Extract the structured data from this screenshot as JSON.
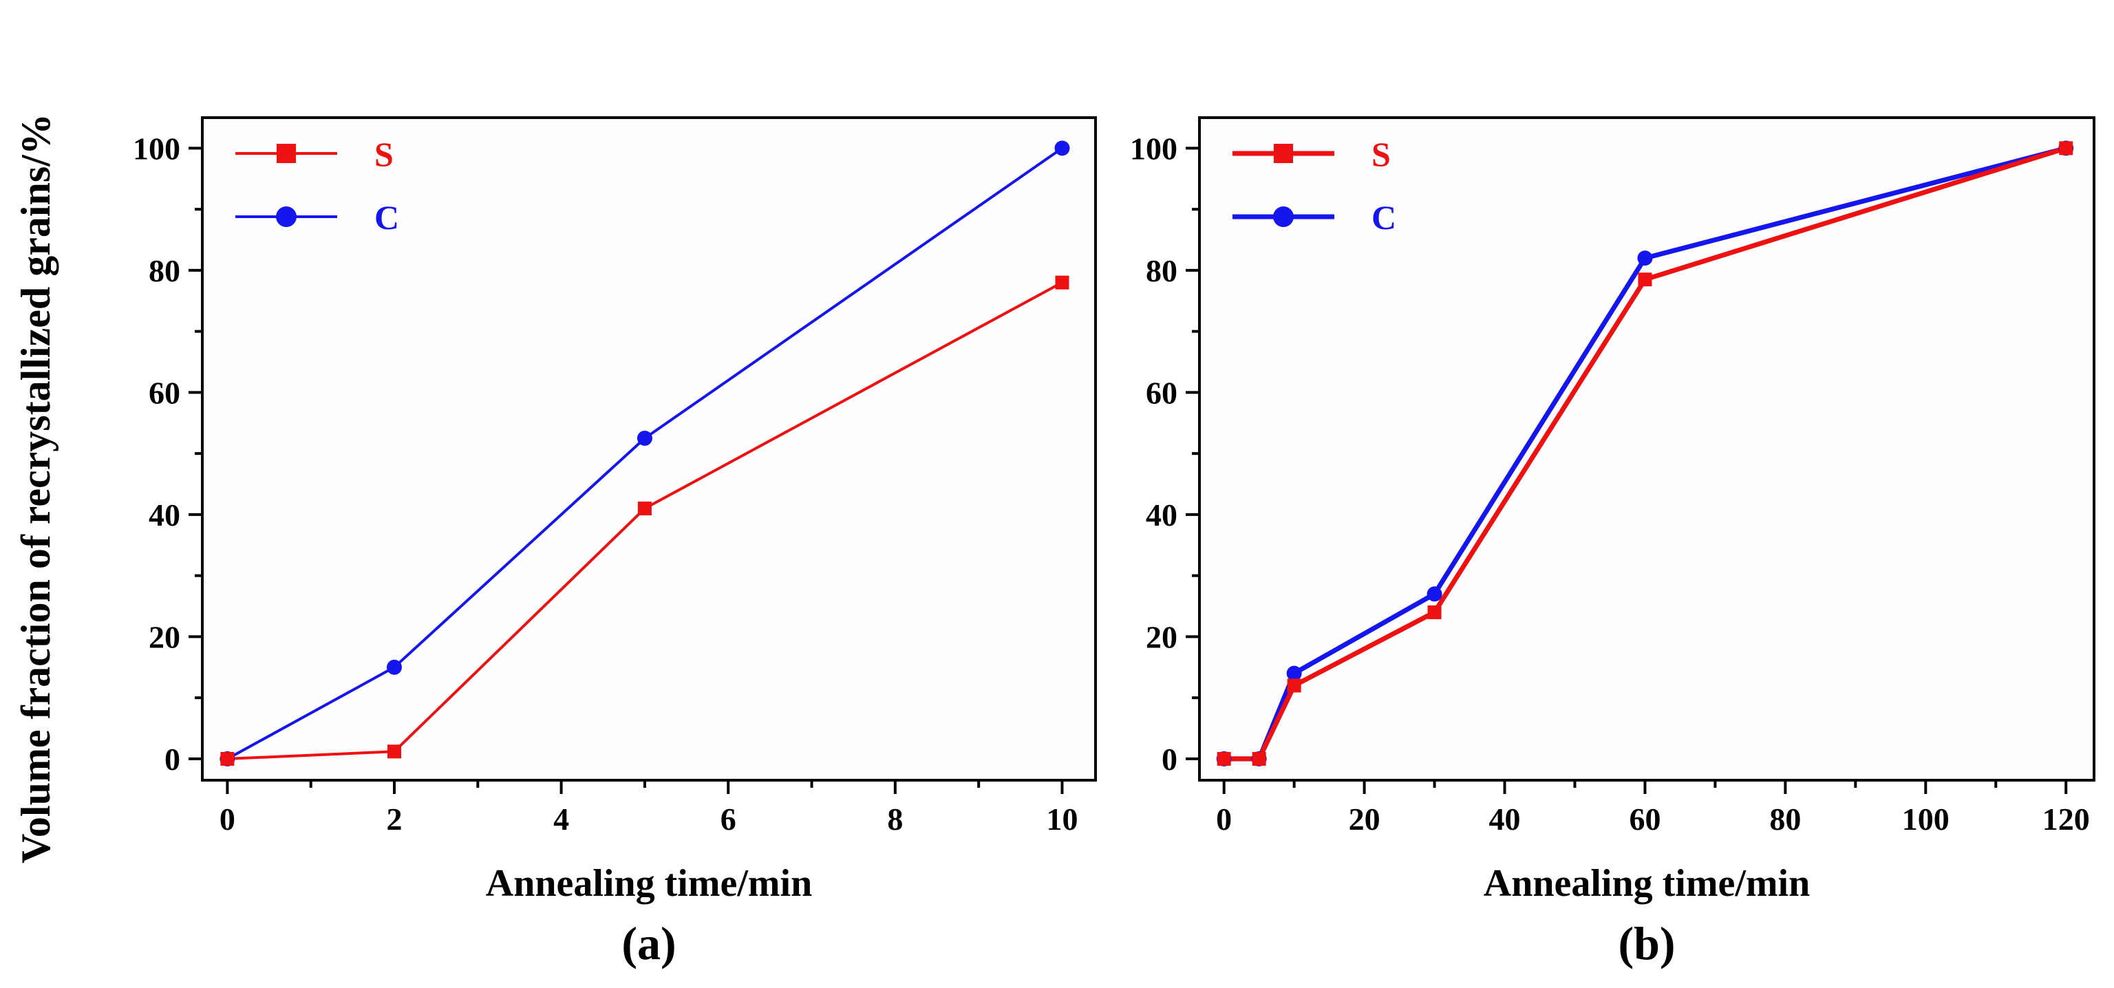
{
  "figure": {
    "ylabel": "Volume fraction of recrystallized grains/%",
    "colors": {
      "S": "#ee1111",
      "C": "#1515ee"
    }
  },
  "chart_data": [
    {
      "type": "line",
      "panel_label": "(a)",
      "xlabel": "Annealing time/min",
      "ylabel": "Volume fraction of recrystallized grains/%",
      "xlim": [
        -0.3,
        10.4
      ],
      "ylim": [
        -3.5,
        105
      ],
      "xticks": [
        0,
        2,
        4,
        6,
        8,
        10
      ],
      "yticks": [
        0,
        20,
        40,
        60,
        80,
        100
      ],
      "grid": false,
      "legend": "top-left",
      "series": [
        {
          "name": "S",
          "marker": "square",
          "color": "#ee1111",
          "x": [
            0,
            2,
            5,
            10
          ],
          "y": [
            0,
            1.2,
            41,
            78
          ]
        },
        {
          "name": "C",
          "marker": "circle",
          "color": "#1515ee",
          "x": [
            0,
            2,
            5,
            10
          ],
          "y": [
            0,
            15,
            52.5,
            100
          ]
        }
      ]
    },
    {
      "type": "line",
      "panel_label": "(b)",
      "xlabel": "Annealing time/min",
      "ylabel": "Volume fraction of recrystallized grains/%",
      "xlim": [
        -3.5,
        124
      ],
      "ylim": [
        -3.5,
        105
      ],
      "xticks": [
        0,
        20,
        40,
        60,
        80,
        100,
        120
      ],
      "yticks": [
        0,
        20,
        40,
        60,
        80,
        100
      ],
      "grid": false,
      "legend": "top-left",
      "series": [
        {
          "name": "S",
          "marker": "square",
          "color": "#ee1111",
          "x": [
            0,
            5,
            10,
            30,
            60,
            120
          ],
          "y": [
            0,
            0,
            12,
            24,
            78.5,
            100
          ]
        },
        {
          "name": "C",
          "marker": "circle",
          "color": "#1515ee",
          "x": [
            0,
            5,
            10,
            30,
            60,
            120
          ],
          "y": [
            0,
            0,
            14,
            27,
            82,
            100
          ]
        }
      ]
    }
  ]
}
